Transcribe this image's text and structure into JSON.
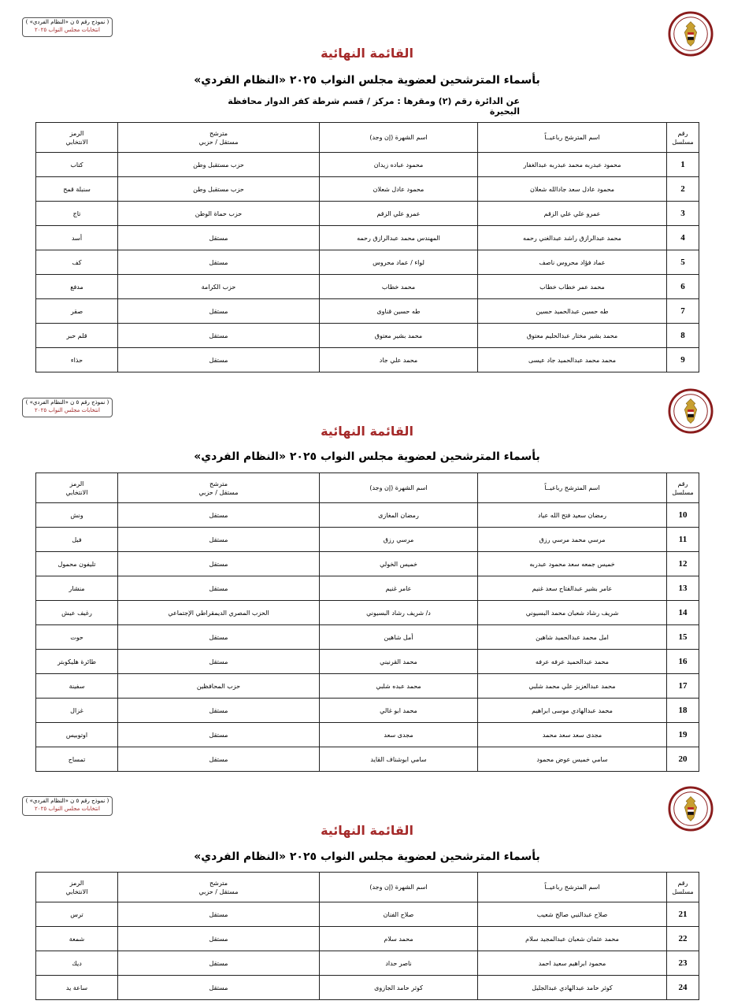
{
  "form_box": {
    "line1": "( نموذج رقم ٥ ن «النظام الفردي» )",
    "line2": "انتخابات مجلس النواب ٢٠٢٥"
  },
  "title": "القائمة النهائية",
  "subtitle": "بأسماء المترشحين لعضوية مجلس النواب ٢٠٢٥ «النظام الفردي»",
  "district_line": "عن الدائرة رقم (٢)   ومقرها : مركز / قسم شرطة كفر الدوار   محافظة البحيرة",
  "columns": {
    "serial_1": "رقم",
    "serial_2": "مسلسل",
    "name": "اسم المترشح رباعيــاً",
    "nickname": "اسم الشهرة (إن وجد)",
    "type_1": "مترشح",
    "type_2": "مستقل / حزبي",
    "symbol_1": "الرمز",
    "symbol_2": "الانتخابي"
  },
  "colors": {
    "title": "#a52a2a",
    "border": "#222222"
  },
  "sections": [
    {
      "rows": [
        {
          "n": "1",
          "name": "محمود عبدربه محمد عبدربه عبدالغفار",
          "nick": "محمود عباده زيدان",
          "type": "حزب مستقبل وطن",
          "symbol": "كتاب"
        },
        {
          "n": "2",
          "name": "محمود عادل سعد جادالله شعلان",
          "nick": "محمود عادل شعلان",
          "type": "حزب مستقبل وطن",
          "symbol": "سنبلة قمح"
        },
        {
          "n": "3",
          "name": "عمرو علي علي الزقم",
          "nick": "عمرو علي الزقم",
          "type": "حزب حماة الوطن",
          "symbol": "تاج"
        },
        {
          "n": "4",
          "name": "محمد عبدالرازق راشد عبدالغني رحمه",
          "nick": "المهندس محمد عبدالرازق رحمه",
          "type": "مستقل",
          "symbol": "أسد"
        },
        {
          "n": "5",
          "name": "عماد فؤاد محروس ناصف",
          "nick": "لواء / عماد محروس",
          "type": "مستقل",
          "symbol": "كف"
        },
        {
          "n": "6",
          "name": "محمد عمر خطاب خطاب",
          "nick": "محمد خطاب",
          "type": "حزب الكرامة",
          "symbol": "مدفع"
        },
        {
          "n": "7",
          "name": "طه حسين عبدالحميد حسين",
          "nick": "طه حسين قناوى",
          "type": "مستقل",
          "symbol": "صقر"
        },
        {
          "n": "8",
          "name": "محمد بشير مختار عبدالحليم معتوق",
          "nick": "محمد بشير معتوق",
          "type": "مستقل",
          "symbol": "قلم حبر"
        },
        {
          "n": "9",
          "name": "محمد محمد عبدالحميد جاد عيسى",
          "nick": "محمد علي جاد",
          "type": "مستقل",
          "symbol": "حذاء"
        }
      ]
    },
    {
      "rows": [
        {
          "n": "10",
          "name": "رمضان سعيد فتح الله عياد",
          "nick": "رمضان المغازى",
          "type": "مستقل",
          "symbol": "ونش"
        },
        {
          "n": "11",
          "name": "مرسي محمد مرسي رزق",
          "nick": "مرسي رزق",
          "type": "مستقل",
          "symbol": "فيل"
        },
        {
          "n": "12",
          "name": "خميس جمعه سعد محمود عبدربه",
          "nick": "خميس الخولي",
          "type": "مستقل",
          "symbol": "تليفون محمول"
        },
        {
          "n": "13",
          "name": "عامر بشير عبدالفتاح سعد غنيم",
          "nick": "عامر غنيم",
          "type": "مستقل",
          "symbol": "منشار"
        },
        {
          "n": "14",
          "name": "شريف رشاد شعبان محمد البسيوني",
          "nick": "د/ شريف رشاد البسيوني",
          "type": "الحزب المصري الديمقراطي الإجتماعي",
          "symbol": "رغيف عيش"
        },
        {
          "n": "15",
          "name": "امل محمد عبدالحميد شاهين",
          "nick": "أمل شاهين",
          "type": "مستقل",
          "symbol": "حوت"
        },
        {
          "n": "16",
          "name": "محمد عبدالحميد عرفه عرفه",
          "nick": "محمد القرنيني",
          "type": "مستقل",
          "symbol": "طائرة هليكوبتر"
        },
        {
          "n": "17",
          "name": "محمد عبدالعزيز علي محمد شلبي",
          "nick": "محمد عبده شلبي",
          "type": "حزب المحافظين",
          "symbol": "سفينة"
        },
        {
          "n": "18",
          "name": "محمد عبدالهادي موسى ابراهيم",
          "nick": "محمد ابو غالي",
          "type": "مستقل",
          "symbol": "غزال"
        },
        {
          "n": "19",
          "name": "مجدى سعد سعد محمد",
          "nick": "مجدى سعد",
          "type": "مستقل",
          "symbol": "اوتوبيس"
        },
        {
          "n": "20",
          "name": "سامي خميس عوض محمود",
          "nick": "سامي ابوشناف القايد",
          "type": "مستقل",
          "symbol": "تمساح"
        }
      ]
    },
    {
      "rows": [
        {
          "n": "21",
          "name": "صلاح عبدالنبي صالح شعيب",
          "nick": "صلاح الفنان",
          "type": "مستقل",
          "symbol": "ترس"
        },
        {
          "n": "22",
          "name": "محمد عثمان شعبان عبدالمجيد سلام",
          "nick": "محمد سلام",
          "type": "مستقل",
          "symbol": "شمعة"
        },
        {
          "n": "23",
          "name": "محمود ابراهيم سعيد احمد",
          "nick": "ناصر حداد",
          "type": "مستقل",
          "symbol": "ديك"
        },
        {
          "n": "24",
          "name": "كوثر حامد عبدالهادي عبدالجليل",
          "nick": "كوثر حامد الجازوى",
          "type": "مستقل",
          "symbol": "ساعة يد"
        }
      ]
    }
  ]
}
